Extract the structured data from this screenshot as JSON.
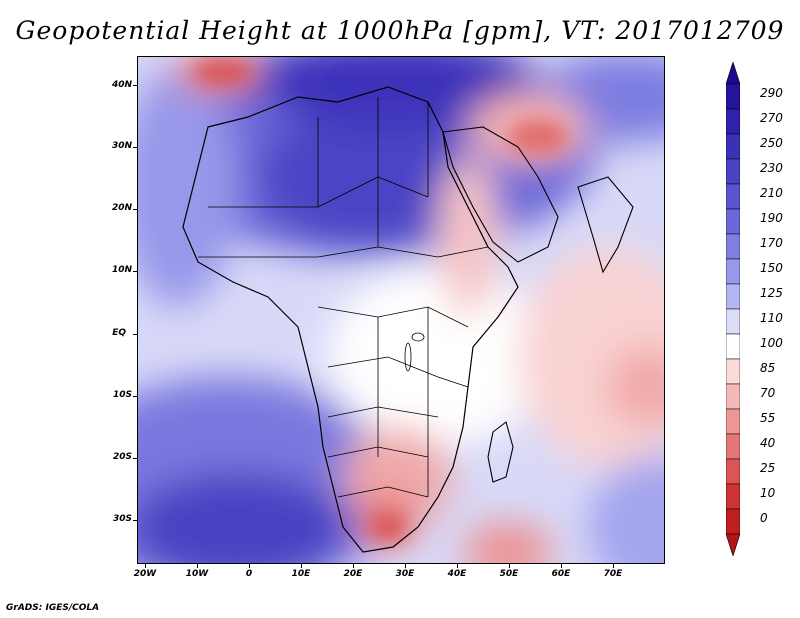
{
  "title": "Geopotential Height at 1000hPa [gpm], VT: 2017012709",
  "credit": "GrADS: IGES/COLA",
  "axes": {
    "y_labels": [
      "40N",
      "30N",
      "20N",
      "10N",
      "EQ",
      "10S",
      "20S",
      "30S"
    ],
    "x_labels": [
      "20W",
      "10W",
      "0",
      "10E",
      "20E",
      "30E",
      "40E",
      "50E",
      "60E",
      "70E"
    ]
  },
  "colorbar": {
    "levels": [
      "290",
      "270",
      "250",
      "230",
      "210",
      "190",
      "170",
      "150",
      "125",
      "110",
      "100",
      "85",
      "70",
      "55",
      "40",
      "25",
      "10",
      "0"
    ],
    "colors": {
      "top_arrow": "#1c0b8f",
      "bands": [
        "#24139e",
        "#2f21ab",
        "#3a31b8",
        "#4a43c4",
        "#5a55cf",
        "#6b68d9",
        "#7f7fe2",
        "#9797eb",
        "#b4b6f3",
        "#dcdcfb",
        "#ffffff",
        "#fbdada",
        "#f6b8b8",
        "#ee9797",
        "#e67777",
        "#dc5454",
        "#cf3434",
        "#bf1f1f"
      ],
      "bottom_arrow": "#b41414"
    }
  }
}
